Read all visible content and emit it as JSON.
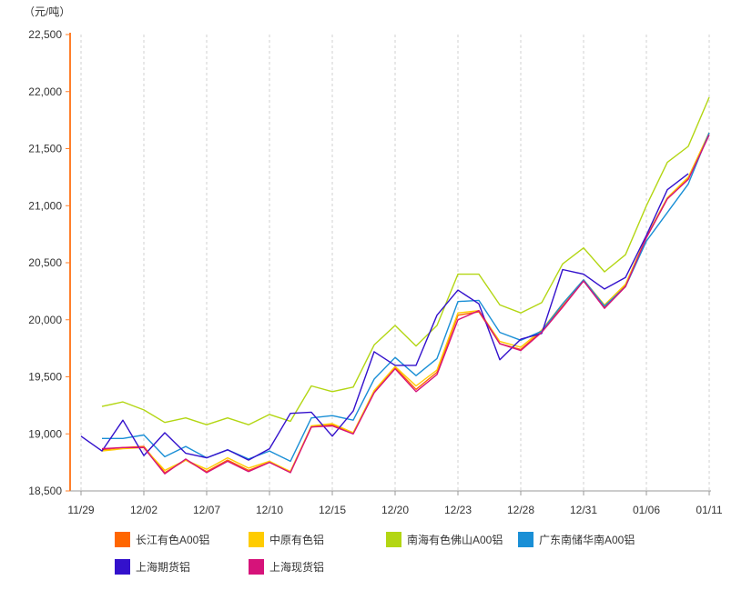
{
  "unit_label": "（元/吨）",
  "chart_data": {
    "type": "line",
    "ylim": [
      18500,
      22500
    ],
    "ytick_labels": [
      "18,500",
      "19,000",
      "19,500",
      "20,000",
      "20,500",
      "21,000",
      "21,500",
      "22,000",
      "22,500"
    ],
    "ytick_values": [
      18500,
      19000,
      19500,
      20000,
      20500,
      21000,
      21500,
      22000,
      22500
    ],
    "x_labels": [
      "11/29",
      "12/02",
      "12/07",
      "12/10",
      "12/15",
      "12/20",
      "12/23",
      "12/28",
      "12/31",
      "01/06",
      "01/11"
    ],
    "x_label_index": [
      0,
      3,
      6,
      9,
      12,
      15,
      18,
      21,
      24,
      27,
      30
    ],
    "grid": "vertical-dashed",
    "legend_position": "bottom",
    "series": [
      {
        "name": "长江有色A00铝",
        "color": "#ff6600",
        "values": [
          null,
          18860,
          18880,
          18890,
          18660,
          18770,
          18670,
          18770,
          18680,
          18750,
          18670,
          19060,
          19080,
          19010,
          19370,
          19580,
          19390,
          19540,
          20040,
          20070,
          19790,
          19740,
          19900,
          20120,
          20340,
          20110,
          20300,
          20720,
          21060,
          21240,
          21640
        ]
      },
      {
        "name": "中原有色铝",
        "color": "#ffcc00",
        "values": [
          null,
          18850,
          18870,
          18880,
          18680,
          18770,
          18690,
          18790,
          18700,
          18760,
          18670,
          19070,
          19090,
          19010,
          19380,
          19590,
          19420,
          19560,
          20060,
          20080,
          19810,
          19760,
          19910,
          20140,
          20350,
          20130,
          20310,
          20730,
          21070,
          21250,
          21640
        ]
      },
      {
        "name": "南海有色佛山A00铝",
        "color": "#b3d613",
        "values": [
          null,
          19240,
          19280,
          19210,
          19100,
          19140,
          19080,
          19140,
          19080,
          19170,
          19110,
          19420,
          19370,
          19410,
          19780,
          19950,
          19770,
          19950,
          20400,
          20400,
          20130,
          20060,
          20150,
          20490,
          20630,
          20420,
          20570,
          21000,
          21380,
          21520,
          21950
        ]
      },
      {
        "name": "广东南储华南A00铝",
        "color": "#1a8fd6",
        "values": [
          null,
          18960,
          18960,
          18990,
          18800,
          18890,
          18790,
          18860,
          18780,
          18850,
          18760,
          19140,
          19160,
          19120,
          19480,
          19670,
          19510,
          19660,
          20160,
          20170,
          19890,
          19820,
          19900,
          20140,
          20350,
          20120,
          20290,
          20690,
          20940,
          21190,
          21640
        ]
      },
      {
        "name": "上海期货铝",
        "color": "#3311cc",
        "values": [
          18980,
          18850,
          19120,
          18810,
          19010,
          18830,
          18790,
          18860,
          18770,
          18870,
          19180,
          19190,
          18980,
          19200,
          19720,
          19600,
          19600,
          20040,
          20260,
          20140,
          19650,
          19830,
          19880,
          20440,
          20400,
          20270,
          20370,
          20740,
          21140,
          21280,
          null
        ]
      },
      {
        "name": "上海现货铝",
        "color": "#d6137a",
        "values": [
          null,
          18870,
          18880,
          18880,
          18650,
          18780,
          18660,
          18760,
          18670,
          18750,
          18660,
          19060,
          19070,
          19000,
          19360,
          19570,
          19370,
          19520,
          20000,
          20080,
          19790,
          19730,
          19890,
          20110,
          20340,
          20100,
          20290,
          20720,
          21060,
          21230,
          21620
        ]
      }
    ]
  }
}
